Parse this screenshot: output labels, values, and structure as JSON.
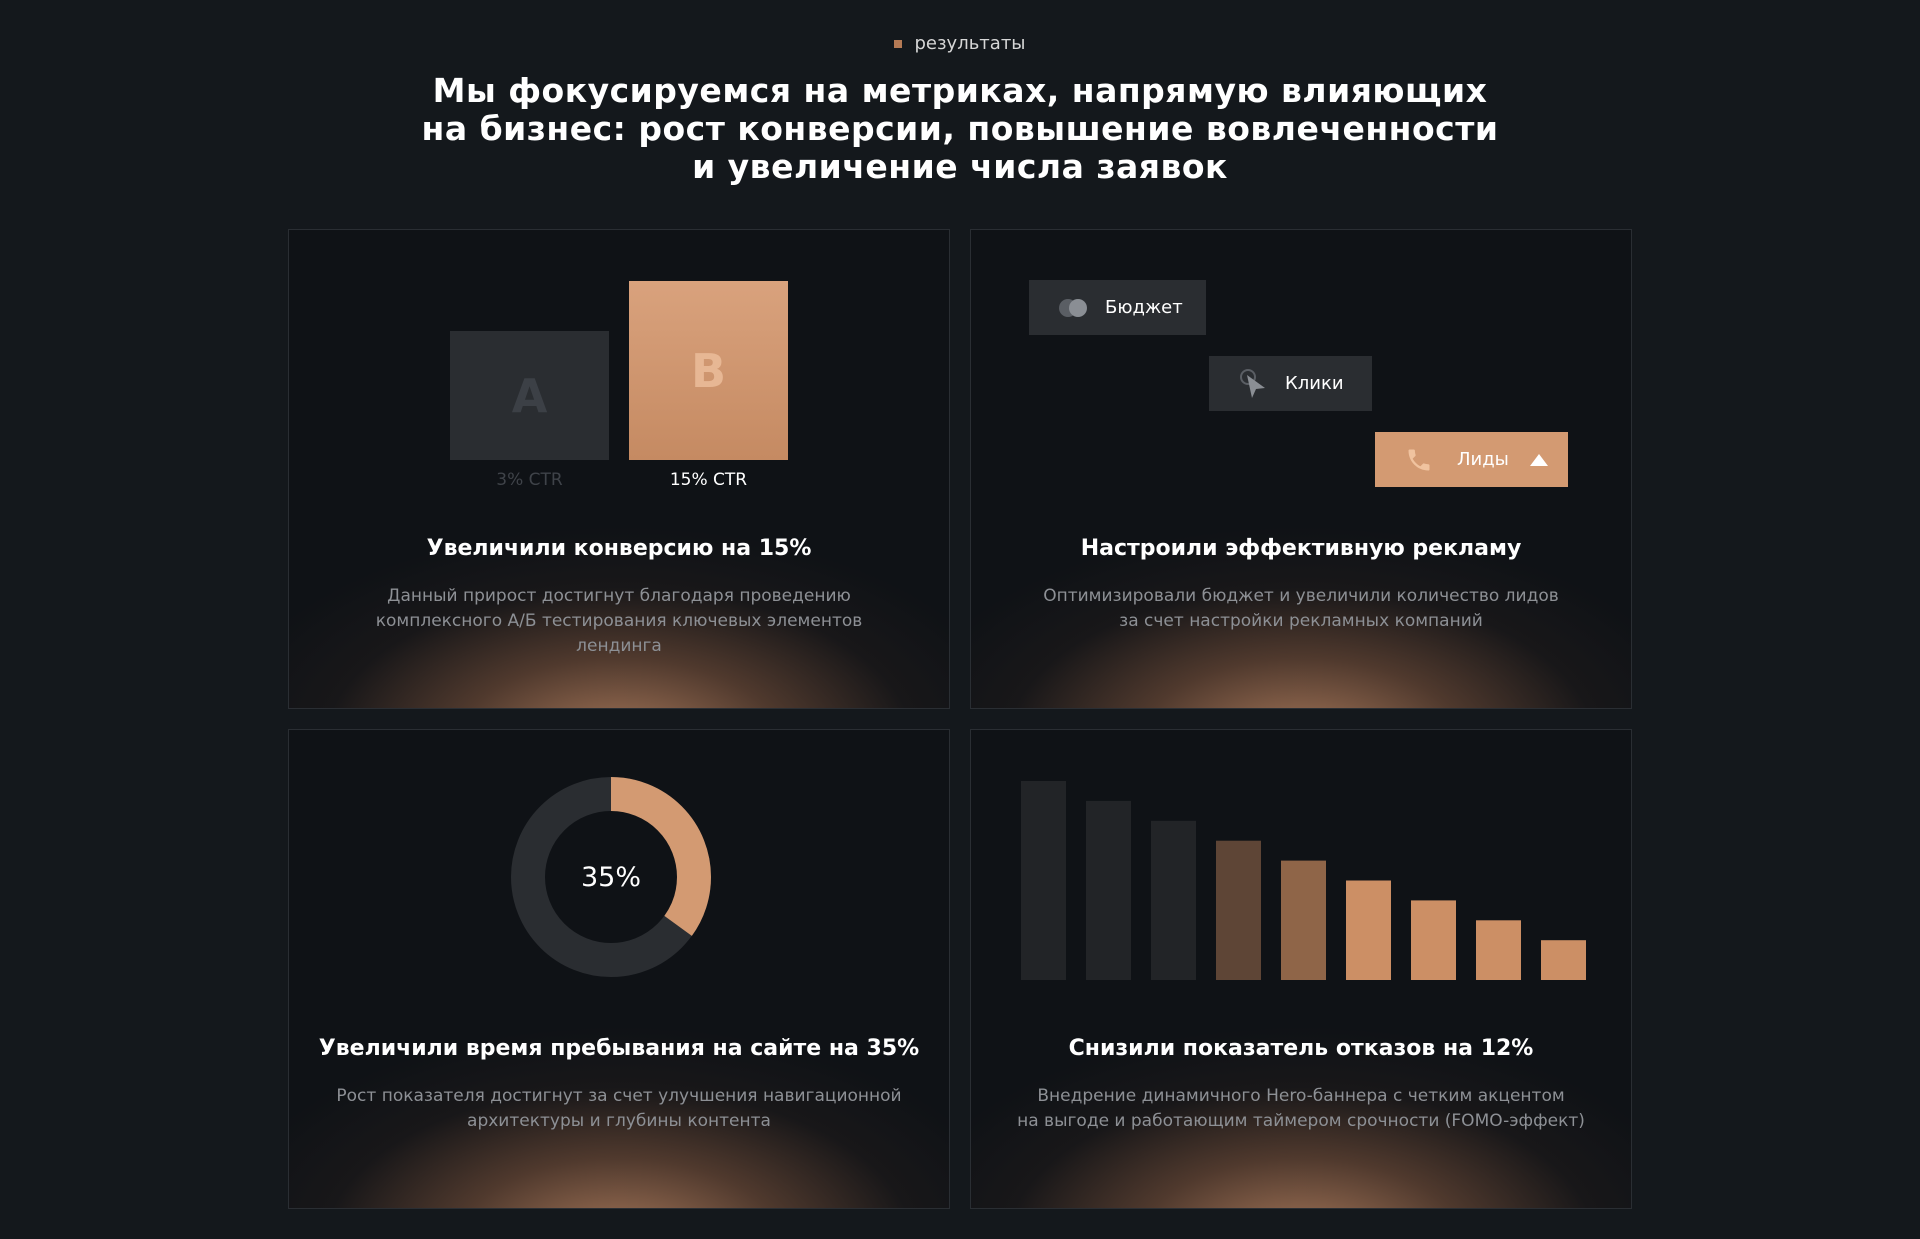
{
  "section": {
    "tag": "результаты",
    "headline_lines": [
      "Мы фокусируемся на метриках, напрямую влияющих",
      "на бизнес: рост конверсии, повышение вовлеченности",
      "и увеличение числа заявок"
    ]
  },
  "cards": [
    {
      "title": "Увеличили конверсию на 15%",
      "text_lines": [
        "Данный прирост достигнут благодаря проведению",
        "комплексного А/Б тестирования ключевых элементов",
        "лендинга"
      ],
      "ab_test": {
        "variant_a": {
          "letter": "A",
          "label": "3% CTR",
          "ctr": 3
        },
        "variant_b": {
          "letter": "B",
          "label": "15% CTR",
          "ctr": 15
        }
      }
    },
    {
      "title": "Настроили эффективную рекламу",
      "text_lines": [
        "Оптимизировали бюджет и увеличили количество лидов",
        "за счет настройки рекламных компаний"
      ],
      "steps": [
        {
          "label": "Бюджет",
          "icon": "coins-icon"
        },
        {
          "label": "Клики",
          "icon": "cursor-icon"
        },
        {
          "label": "Лиды",
          "icon": "phone-icon",
          "indicator": "arrow-up-icon"
        }
      ]
    },
    {
      "title": "Увеличили время пребывания на сайте на 35%",
      "text_lines": [
        "Рост показателя достигнут за счет улучшения навигационной",
        "архитектуры и глубины контента"
      ],
      "donut": {
        "label": "35%",
        "value": 0.35
      }
    },
    {
      "title": "Снизили показатель отказов на 12%",
      "text_lines": [
        "Внедрение динамичного Hero-баннера с четким акцентом",
        "на выгоде и работающим таймером срочности (FOMO-эффект)"
      ],
      "bars": {
        "values": [
          100,
          90,
          80,
          70,
          60,
          50,
          40,
          30,
          20
        ],
        "colors": [
          "#222427",
          "#222427",
          "#222427",
          "#5e4536",
          "#8f6548",
          "#cc8f65",
          "#cc8f65",
          "#cc8f65",
          "#cc8f65"
        ]
      }
    }
  ],
  "colors": {
    "background": "#14181c",
    "accent": "#d39a72",
    "muted_text": "#8d9095"
  }
}
